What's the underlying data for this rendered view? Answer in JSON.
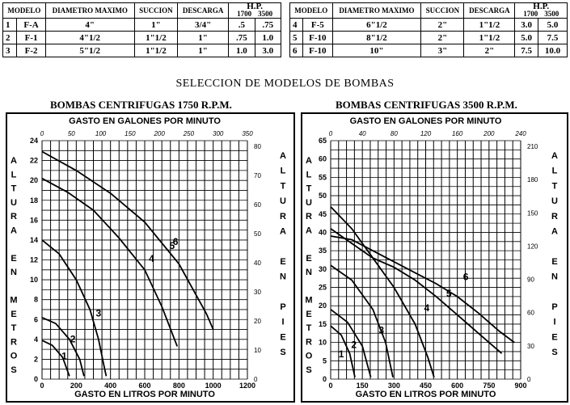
{
  "spec_table": {
    "headers": {
      "modelo": "MODELO",
      "diametro": "DIAMETRO MAXIMO",
      "succion": "SUCCION",
      "descarga": "DESCARGA",
      "hp": "H.P.",
      "hp_1700": "1700",
      "hp_3500": "3500"
    },
    "left_rows": [
      {
        "n": "1",
        "model": "F-A",
        "diam": "4\"",
        "suc": "1\"",
        "desc": "3/4\"",
        "hp1": ".5",
        "hp2": ".75"
      },
      {
        "n": "2",
        "model": "F-1",
        "diam": "4\"1/2",
        "suc": "1\"1/2",
        "desc": "1\"",
        "hp1": ".75",
        "hp2": "1.0"
      },
      {
        "n": "3",
        "model": "F-2",
        "diam": "5\"1/2",
        "suc": "1\"1/2",
        "desc": "1\"",
        "hp1": "1.0",
        "hp2": "3.0"
      }
    ],
    "right_rows": [
      {
        "n": "4",
        "model": "F-5",
        "diam": "6\"1/2",
        "suc": "2\"",
        "desc": "1\"1/2",
        "hp1": "3.0",
        "hp2": "5.0"
      },
      {
        "n": "5",
        "model": "F-10",
        "diam": "8\"1/2",
        "suc": "2\"",
        "desc": "1\"1/2",
        "hp1": "5.0",
        "hp2": "7.5"
      },
      {
        "n": "6",
        "model": "F-10",
        "diam": "10\"",
        "suc": "3\"",
        "desc": "2\"",
        "hp1": "7.5",
        "hp2": "10.0"
      }
    ]
  },
  "main_title": "SELECCION DE MODELOS DE BOMBAS",
  "chart_data": [
    {
      "type": "line",
      "title": "BOMBAS CENTRIFUGAS 1750 R.P.M.",
      "top_axis_label": "GASTO EN GALONES POR MINUTO",
      "bottom_axis_label": "GASTO EN LITROS POR MINUTO",
      "left_axis_label": "ALTURA EN METROS",
      "right_axis_label": "ALTURA EN PIES",
      "x_ticks": [
        0,
        200,
        400,
        600,
        800,
        1000,
        1200
      ],
      "top_ticks": [
        0,
        50,
        100,
        150,
        200,
        250,
        300,
        350
      ],
      "y_ticks": [
        0,
        2,
        4,
        6,
        8,
        10,
        12,
        14,
        16,
        18,
        20,
        22,
        24
      ],
      "right_ticks": [
        0,
        10,
        20,
        30,
        40,
        50,
        60,
        70,
        80
      ],
      "xlim": [
        0,
        1200
      ],
      "ylim": [
        0,
        24
      ],
      "grid": true,
      "series": [
        {
          "name": "1",
          "label_at": [
            130,
            2
          ],
          "points": [
            [
              0,
              3.9
            ],
            [
              60,
              3.4
            ],
            [
              120,
              2.2
            ],
            [
              160,
              0.3
            ]
          ]
        },
        {
          "name": "2",
          "label_at": [
            180,
            3.7
          ],
          "points": [
            [
              0,
              6.2
            ],
            [
              80,
              5.6
            ],
            [
              160,
              4
            ],
            [
              220,
              2
            ],
            [
              245,
              0.3
            ]
          ]
        },
        {
          "name": "3",
          "label_at": [
            330,
            6.3
          ],
          "points": [
            [
              0,
              14
            ],
            [
              100,
              12.6
            ],
            [
              200,
              10
            ],
            [
              280,
              7
            ],
            [
              330,
              4
            ],
            [
              360,
              1.5
            ],
            [
              375,
              0.3
            ]
          ]
        },
        {
          "name": "4",
          "label_at": [
            640,
            11.8
          ],
          "points": [
            [
              0,
              20.2
            ],
            [
              150,
              18.8
            ],
            [
              300,
              17
            ],
            [
              450,
              14.2
            ],
            [
              600,
              11
            ],
            [
              700,
              7.3
            ],
            [
              790,
              3.3
            ]
          ]
        },
        {
          "name": "5",
          "label_at": [
            760,
            13.1
          ],
          "points": [
            [
              0,
              22.9
            ],
            [
              200,
              21
            ],
            [
              400,
              18.7
            ],
            [
              600,
              15.8
            ],
            [
              800,
              11.6
            ],
            [
              960,
              6.6
            ],
            [
              1000,
              5
            ]
          ]
        },
        {
          "name": "6",
          "label_at": [
            780,
            13.5
          ],
          "points": []
        }
      ]
    },
    {
      "type": "line",
      "title": "BOMBAS CENTRIFUGAS 3500 R.P.M.",
      "top_axis_label": "GASTO EN GALONES POR MINUTO",
      "bottom_axis_label": "GASTO EN LITROS POR MINUTO",
      "left_axis_label": "ALTURA EN METROS",
      "right_axis_label": "ALTURA EN PIES",
      "x_ticks": [
        0,
        150,
        300,
        450,
        600,
        750,
        900
      ],
      "top_ticks": [
        0,
        40,
        80,
        120,
        160,
        200,
        240
      ],
      "y_ticks": [
        0,
        5,
        10,
        15,
        20,
        25,
        30,
        35,
        40,
        45,
        50,
        55,
        60,
        65
      ],
      "right_ticks": [
        0,
        30,
        60,
        90,
        120,
        150,
        180,
        210
      ],
      "xlim": [
        0,
        900
      ],
      "ylim": [
        0,
        65
      ],
      "grid": true,
      "series": [
        {
          "name": "1",
          "label_at": [
            50,
            6
          ],
          "points": [
            [
              0,
              14.5
            ],
            [
              50,
              12
            ],
            [
              90,
              7
            ],
            [
              115,
              0.5
            ]
          ]
        },
        {
          "name": "2",
          "label_at": [
            110,
            8.5
          ],
          "points": [
            [
              0,
              19
            ],
            [
              80,
              15.5
            ],
            [
              150,
              9
            ],
            [
              190,
              0.5
            ]
          ]
        },
        {
          "name": "3",
          "label_at": [
            240,
            12.5
          ],
          "points": [
            [
              0,
              31
            ],
            [
              100,
              27
            ],
            [
              200,
              19
            ],
            [
              260,
              10
            ],
            [
              295,
              0.5
            ]
          ]
        },
        {
          "name": "4",
          "label_at": [
            455,
            18.5
          ],
          "points": [
            [
              0,
              47
            ],
            [
              100,
              41
            ],
            [
              200,
              33
            ],
            [
              300,
              25
            ],
            [
              400,
              15
            ],
            [
              460,
              6
            ],
            [
              490,
              0.5
            ]
          ]
        },
        {
          "name": "5",
          "label_at": [
            560,
            22.5
          ],
          "points": [
            [
              0,
              41
            ],
            [
              100,
              37
            ],
            [
              200,
              33
            ],
            [
              300,
              30.5
            ],
            [
              400,
              27
            ],
            [
              500,
              22.5
            ],
            [
              600,
              17.5
            ],
            [
              700,
              12.5
            ],
            [
              810,
              7
            ]
          ]
        },
        {
          "name": "6",
          "label_at": [
            640,
            27
          ],
          "points": [
            [
              0,
              39
            ],
            [
              100,
              38
            ],
            [
              200,
              35
            ],
            [
              300,
              32
            ],
            [
              400,
              29
            ],
            [
              500,
              26
            ],
            [
              600,
              22.5
            ],
            [
              700,
              18
            ],
            [
              800,
              13
            ],
            [
              870,
              10
            ]
          ]
        }
      ]
    }
  ]
}
